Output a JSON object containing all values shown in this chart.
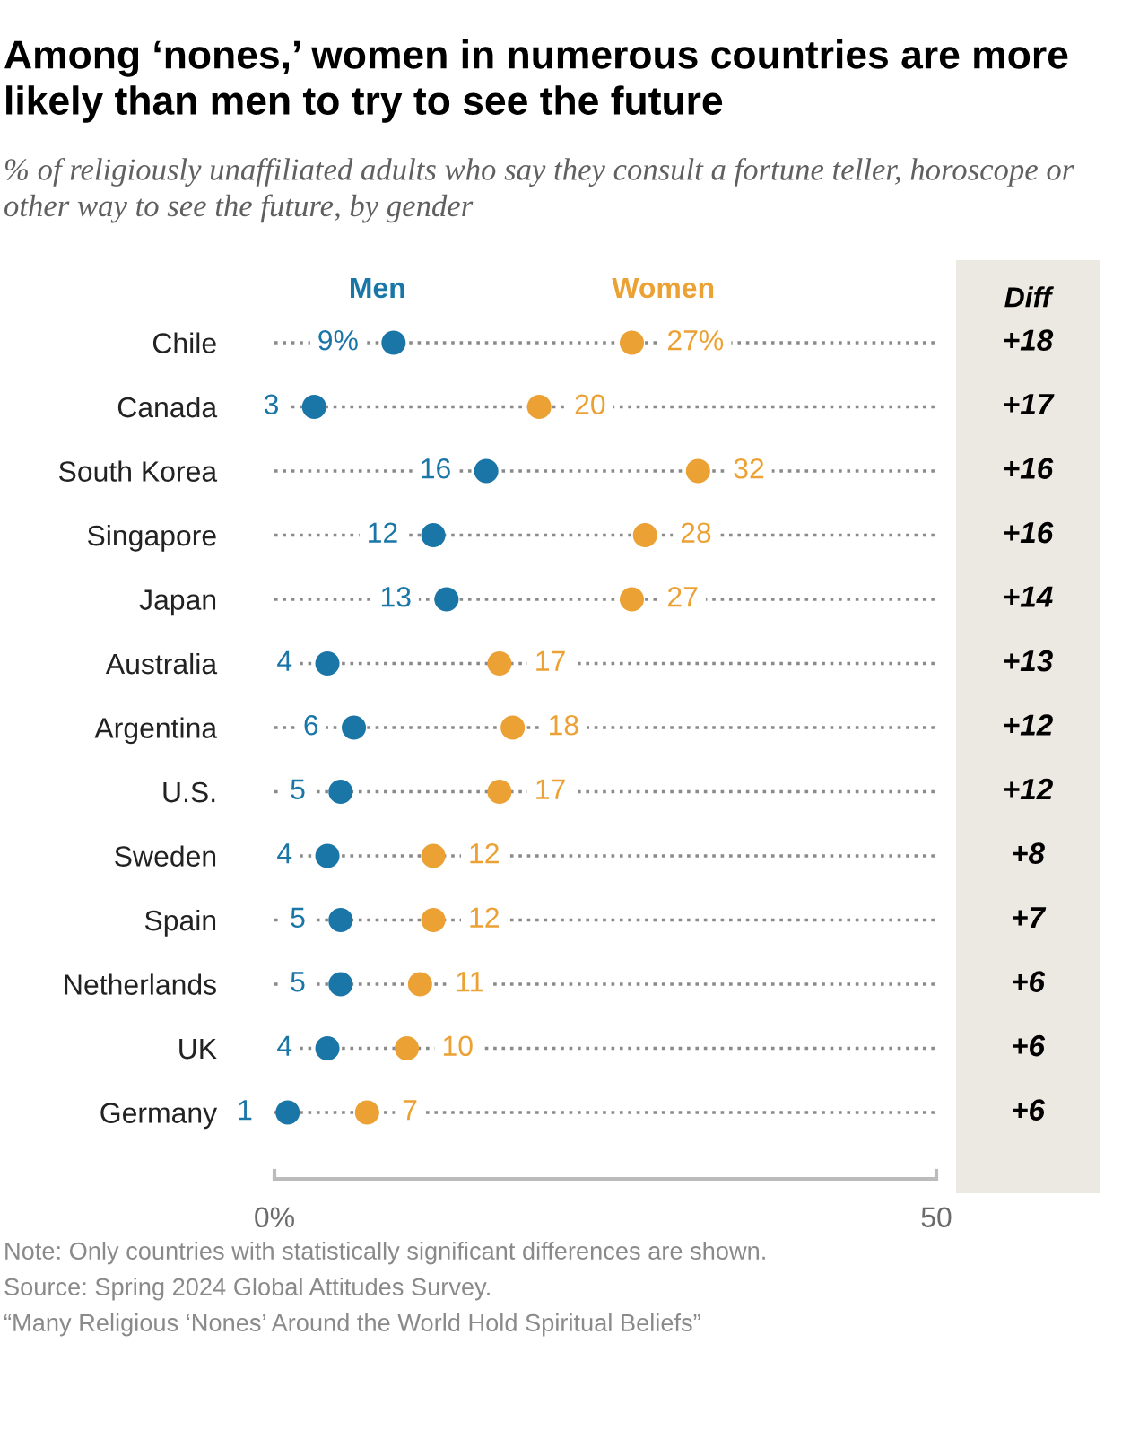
{
  "chart_data": [
    {
      "type": "scatter",
      "orientation": "horizontal",
      "title": "Among ‘nones,’ women in numerous countries are more likely than men to try to see the future",
      "subtitle": "% of religiously unaffiliated adults who say they consult a fortune teller, horoscope or other way to see the future, by gender",
      "categories": [
        "Chile",
        "Canada",
        "South Korea",
        "Singapore",
        "Japan",
        "Australia",
        "Argentina",
        "U.S.",
        "Sweden",
        "Spain",
        "Netherlands",
        "UK",
        "Germany"
      ],
      "series": [
        {
          "name": "Men",
          "color": "#1b76a8",
          "values": [
            9,
            3,
            16,
            12,
            13,
            4,
            6,
            5,
            4,
            5,
            5,
            4,
            1
          ],
          "value_labels": [
            "9%",
            "3",
            "16",
            "12",
            "13",
            "4",
            "6",
            "5",
            "4",
            "5",
            "5",
            "4",
            "1"
          ]
        },
        {
          "name": "Women",
          "color": "#eca135",
          "values": [
            27,
            20,
            32,
            28,
            27,
            17,
            18,
            17,
            12,
            12,
            11,
            10,
            7
          ],
          "value_labels": [
            "27%",
            "20",
            "32",
            "28",
            "27",
            "17",
            "18",
            "17",
            "12",
            "12",
            "11",
            "10",
            "7"
          ]
        }
      ],
      "xlim": [
        0,
        50
      ],
      "xticks": [
        {
          "value": 0,
          "label": "0%"
        },
        50
      ],
      "grid": "y",
      "marker": "circle",
      "annotations": [
        "Note: Only countries with statistically significant differences are shown.",
        "Source: Spring 2024 Global Attitudes Survey.",
        "“Many Religious ‘Nones’ Around the World Hold Spiritual Beliefs”"
      ]
    },
    {
      "type": "other",
      "title": "Diff",
      "annotations": [
        "+18",
        "+17",
        "+16",
        "+16",
        "+14",
        "+13",
        "+12",
        "+12",
        "+8",
        "+7",
        "+6",
        "+6",
        "+6"
      ]
    }
  ]
}
